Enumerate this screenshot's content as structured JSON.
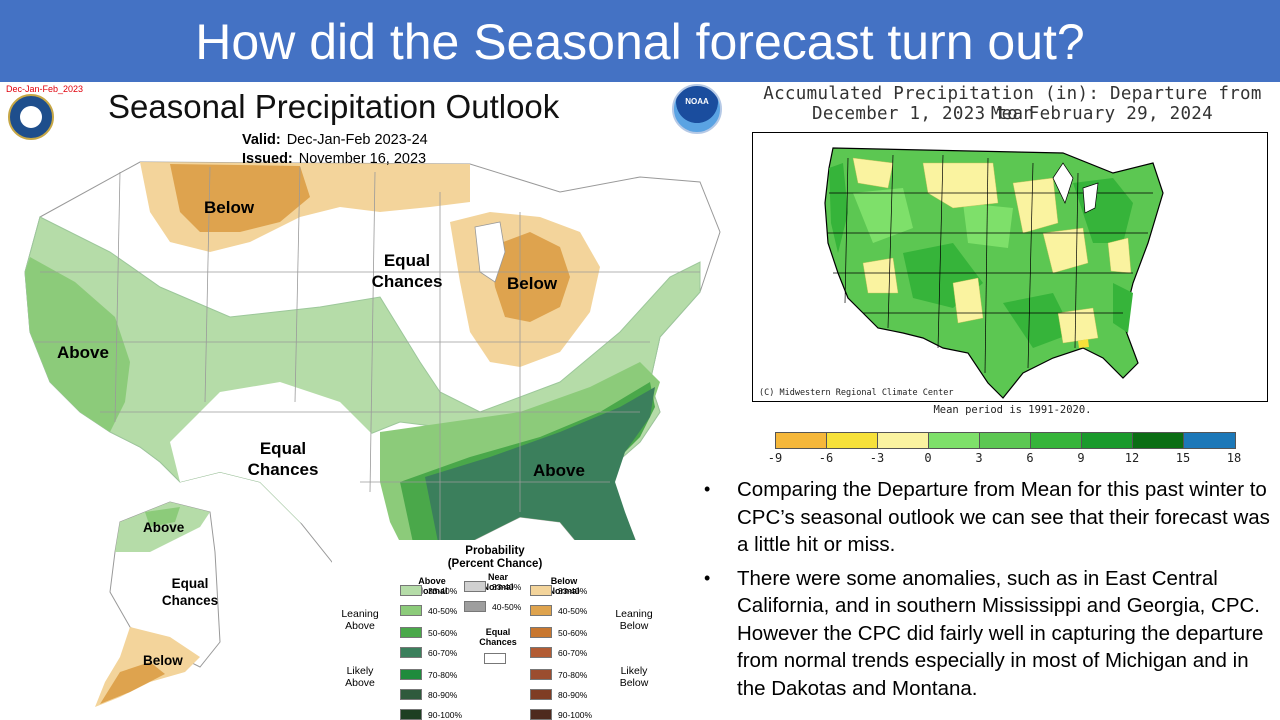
{
  "slide": {
    "title": "How did the Seasonal forecast turn out?",
    "bullets": [
      "Comparing the Departure from Mean for this past winter to CPC’s seasonal outlook we can see that their forecast was a little hit or miss.",
      "There were some anomalies, such as in East Central California, and in southern Mississippi and Georgia, CPC. However the CPC did fairly well in capturing the departure from normal trends especially in most of Michigan and in the Dakotas and Montana."
    ]
  },
  "outlook": {
    "tag": "Dec-Jan-Feb_2023",
    "title": "Seasonal Precipitation Outlook",
    "valid_label": "Valid:",
    "valid_value": "Dec-Jan-Feb 2023-24",
    "issued_label": "Issued:",
    "issued_value": "November 16, 2023",
    "noaa_text": "NOAA",
    "labels": {
      "below_north": "Below",
      "equal_center": "Equal Chances",
      "below_michigan": "Below",
      "above_west": "Above",
      "equal_south": "Equal Chances",
      "above_southeast": "Above",
      "above_alaska": "Above",
      "equal_alaska": "Equal Chances",
      "below_alaska": "Below"
    },
    "legend": {
      "title": "Probability",
      "subtitle": "(Percent Chance)",
      "above_head": "Above Normal",
      "near_head": "Near Normal",
      "below_head": "Below Normal",
      "leaning_above": "Leaning Above",
      "likely_above": "Likely Above",
      "leaning_below": "Leaning Below",
      "likely_below": "Likely Below",
      "equal_chances": "Equal Chances",
      "ranges": [
        "33-40%",
        "40-50%",
        "50-60%",
        "60-70%",
        "70-80%",
        "80-90%",
        "90-100%"
      ],
      "near_ranges": [
        "33-40%",
        "40-50%"
      ],
      "above_colors": [
        "#b5dca8",
        "#8ccb7a",
        "#4aa84a",
        "#3b7f5c",
        "#1f8b3c",
        "#2f5a3c",
        "#1d3f22"
      ],
      "below_colors": [
        "#f3d49b",
        "#dea34e",
        "#c8772f",
        "#b25c34",
        "#9b4d2f",
        "#7f3d24",
        "#4e2a1e"
      ],
      "near_colors": [
        "#d0d0d0",
        "#9e9e9e"
      ]
    }
  },
  "departure": {
    "title_line1": "Accumulated Precipitation (in): Departure from Mean",
    "title_line2": "December 1, 2023 to February 29, 2024",
    "credit": "(C) Midwestern Regional Climate Center",
    "mean_period": "Mean period is 1991-2020.",
    "colorbar_ticks": [
      "-9",
      "-6",
      "-3",
      "0",
      "3",
      "6",
      "9",
      "12",
      "15",
      "18"
    ],
    "colorbar_colors": [
      "#f5b73a",
      "#f7e13a",
      "#faf3a0",
      "#7ee06a",
      "#5cc752",
      "#36b43a",
      "#1a9a2c",
      "#0b6e14",
      "#1c78b8",
      "#3aa2dc"
    ]
  }
}
